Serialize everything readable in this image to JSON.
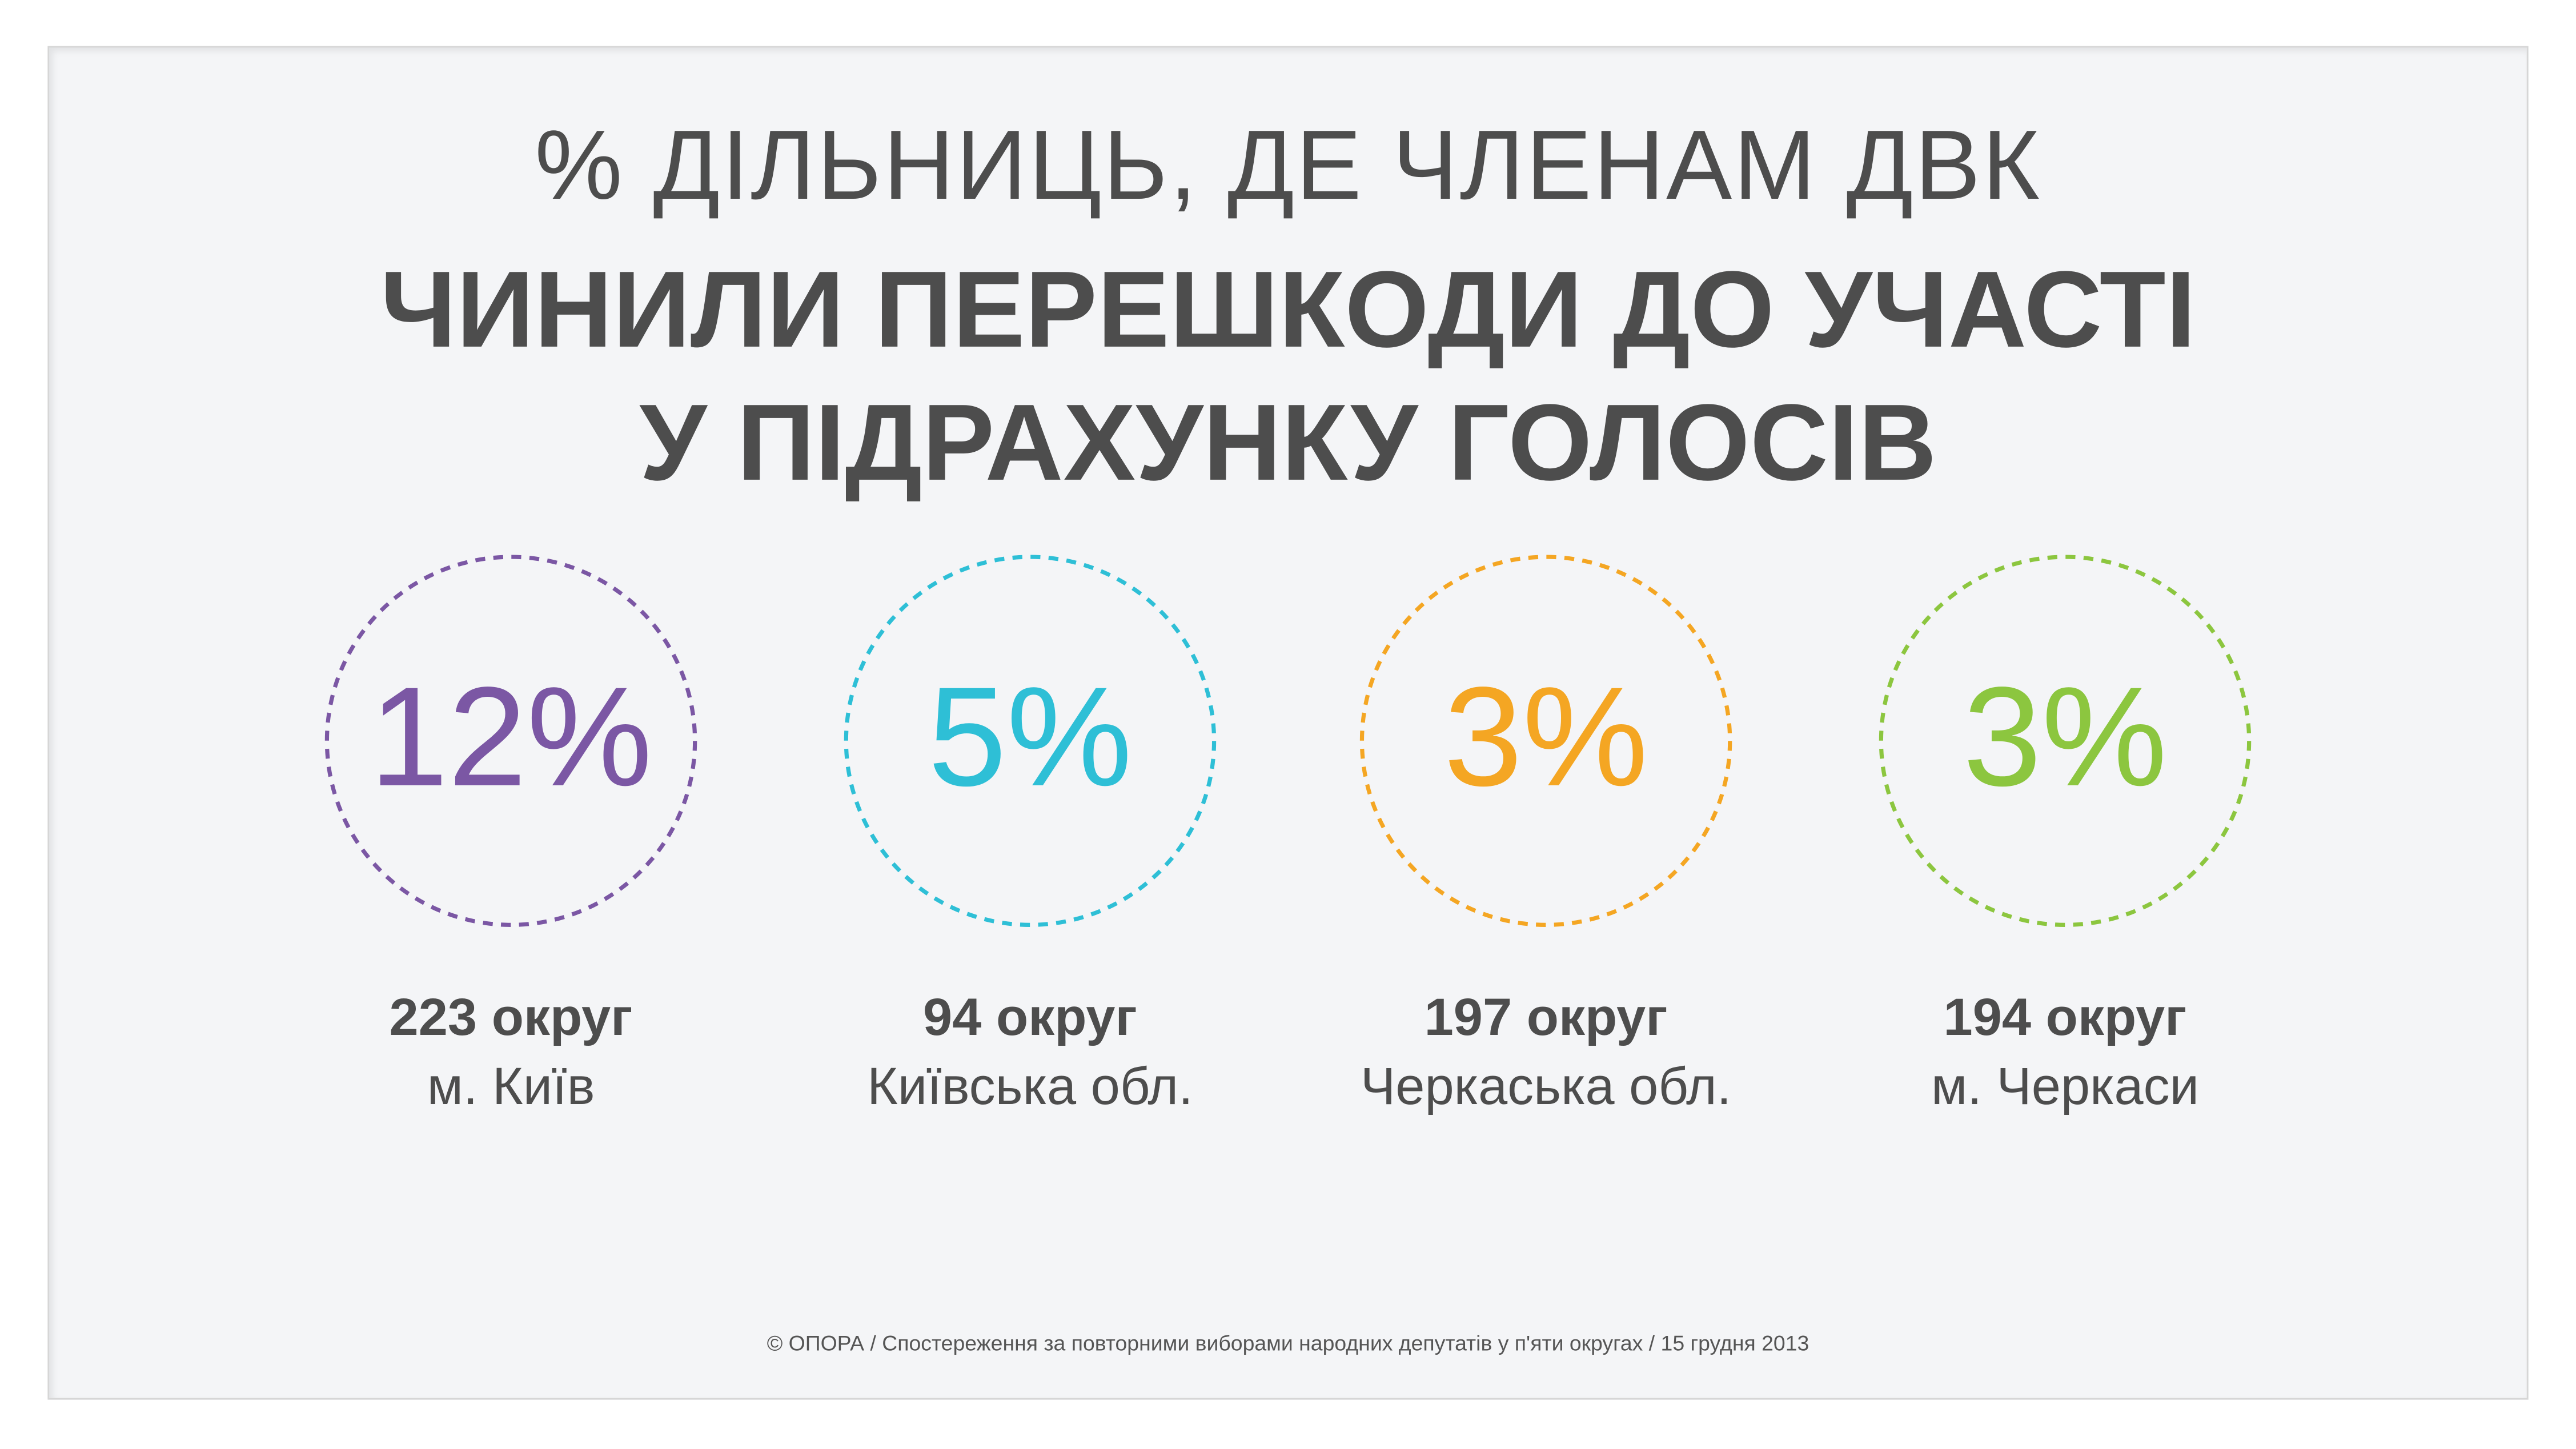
{
  "title": {
    "line1": "% ДІЛЬНИЦЬ, ДЕ ЧЛЕНАМ ДВК",
    "line2": "ЧИНИЛИ ПЕРЕШКОДИ ДО УЧАСТІ",
    "line3": "У ПІДРАХУНКУ ГОЛОСІВ"
  },
  "stats": [
    {
      "value": "12%",
      "district": "223 округ",
      "region": "м. Київ",
      "color": "#7b57a4"
    },
    {
      "value": "5%",
      "district": "94 округ",
      "region": "Київська обл.",
      "color": "#2ebfd6"
    },
    {
      "value": "3%",
      "district": "197 округ",
      "region": "Черкаська обл.",
      "color": "#f4a623"
    },
    {
      "value": "3%",
      "district": "194 округ",
      "region": "м. Черкаси",
      "color": "#8cc63f"
    }
  ],
  "footer": "© ОПОРА / Спостереження за повторними виборами народних депутатів  у п'яти округах / 15 грудня 2013"
}
